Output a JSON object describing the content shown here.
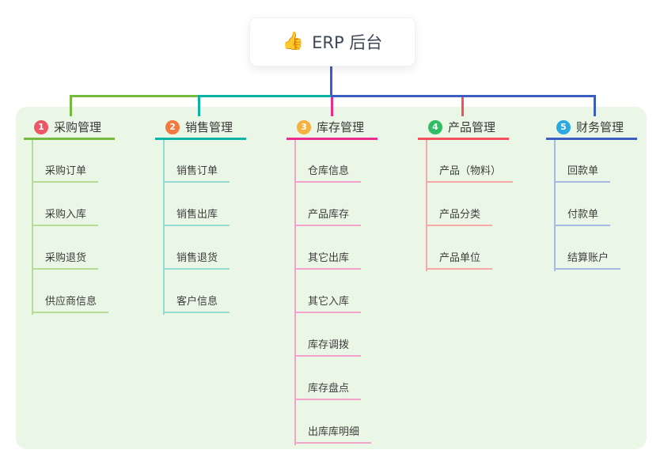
{
  "root": {
    "icon": "thumbs-up",
    "label": "ERP 后台"
  },
  "colors": {
    "page_bg": "#ffffff",
    "panel_bg": "#ebf7e6",
    "root_card_bg": "#ffffff",
    "root_line": "#4459cf",
    "text": "#3d3d3d"
  },
  "branches": [
    {
      "num": "1",
      "label": "采购管理",
      "badge_color": "#ee5566",
      "line_color": "#76b93f",
      "item_line_color": "#b7dc96",
      "items": [
        "采购订单",
        "采购入库",
        "采购退货",
        "供应商信息"
      ]
    },
    {
      "num": "2",
      "label": "销售管理",
      "badge_color": "#f5793e",
      "line_color": "#0cb3a2",
      "item_line_color": "#96dbd1",
      "items": [
        "销售订单",
        "销售出库",
        "销售退货",
        "客户信息"
      ]
    },
    {
      "num": "3",
      "label": "库存管理",
      "badge_color": "#f8b03c",
      "line_color": "#e92d8f",
      "item_line_color": "#f3a2cb",
      "items": [
        "仓库信息",
        "产品库存",
        "其它出库",
        "其它入库",
        "库存调拨",
        "库存盘点",
        "出库库明细"
      ]
    },
    {
      "num": "4",
      "label": "产品管理",
      "badge_color": "#2fbe63",
      "line_color": "#f4515c",
      "item_line_color": "#f8a8a6",
      "items": [
        "产品（物料）",
        "产品分类",
        "产品单位"
      ]
    },
    {
      "num": "5",
      "label": "财务管理",
      "badge_color": "#2ca9e1",
      "line_color": "#3a5fc1",
      "item_line_color": "#a7b8e6",
      "items": [
        "回款单",
        "付款单",
        "结算账户"
      ]
    }
  ]
}
